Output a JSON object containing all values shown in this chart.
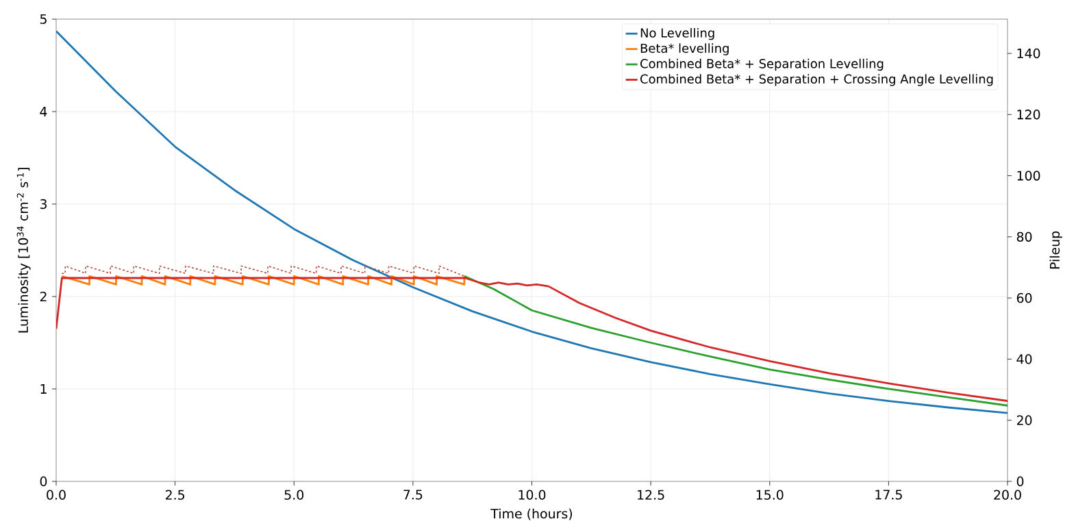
{
  "chart_data": {
    "type": "line",
    "xlabel": "Time (hours)",
    "ylabel": "Luminosity [10$^{34}$ cm$^{-2}$ s$^{-1}$]",
    "y2label": "Pileup",
    "xlim": [
      0,
      20
    ],
    "ylim": [
      0,
      5
    ],
    "y2lim": [
      0,
      151.2
    ],
    "xticks": [
      {
        "value": 0,
        "label": "0.0"
      },
      {
        "value": 2.5,
        "label": "2.5"
      },
      {
        "value": 5,
        "label": "5.0"
      },
      {
        "value": 7.5,
        "label": "7.5"
      },
      {
        "value": 10,
        "label": "10.0"
      },
      {
        "value": 12.5,
        "label": "12.5"
      },
      {
        "value": 15,
        "label": "15.0"
      },
      {
        "value": 17.5,
        "label": "17.5"
      },
      {
        "value": 20,
        "label": "20.0"
      }
    ],
    "yticks": [
      0,
      1,
      2,
      3,
      4,
      5
    ],
    "y2ticks": [
      0,
      20,
      40,
      60,
      80,
      100,
      120,
      140
    ],
    "grid": true,
    "legend": "top right",
    "marker": "none",
    "series": [
      {
        "name": "No Levelling",
        "color": "#1f77b4",
        "x": [
          0,
          1.25,
          2.5,
          3.75,
          5,
          6.25,
          7.5,
          8.75,
          10,
          11.25,
          12.5,
          13.75,
          15,
          16.25,
          17.5,
          18.75,
          20
        ],
        "values": [
          4.87,
          4.22,
          3.62,
          3.15,
          2.73,
          2.39,
          2.1,
          1.84,
          1.62,
          1.44,
          1.29,
          1.16,
          1.05,
          0.95,
          0.87,
          0.8,
          0.74
        ]
      },
      {
        "name": "Beta* levelling",
        "color": "#ff7f0e",
        "x": [
          0.12,
          0.7,
          0.7,
          1.26,
          1.26,
          1.8,
          1.8,
          2.29,
          2.29,
          2.82,
          2.82,
          3.34,
          3.34,
          3.92,
          3.92,
          4.47,
          4.47,
          5.0,
          5.0,
          5.52,
          5.52,
          6.03,
          6.03,
          6.56,
          6.56,
          7.05,
          7.05,
          7.52,
          7.52,
          8.0,
          8.0,
          8.58,
          8.58
        ],
        "values": [
          2.22,
          2.13,
          2.22,
          2.13,
          2.22,
          2.13,
          2.22,
          2.13,
          2.22,
          2.13,
          2.22,
          2.13,
          2.22,
          2.13,
          2.22,
          2.13,
          2.22,
          2.13,
          2.22,
          2.13,
          2.22,
          2.13,
          2.22,
          2.13,
          2.22,
          2.13,
          2.22,
          2.13,
          2.22,
          2.13,
          2.22,
          2.13,
          2.22
        ]
      },
      {
        "name": "Combined Beta* + Separation Levelling",
        "color": "#2ca02c",
        "x": [
          8.58,
          9.2,
          10,
          11.25,
          12.5,
          13.75,
          15,
          16.25,
          17.5,
          18.75,
          20
        ],
        "values": [
          2.22,
          2.08,
          1.85,
          1.66,
          1.5,
          1.35,
          1.21,
          1.1,
          1.0,
          0.91,
          0.82
        ]
      },
      {
        "name": "Combined Beta* + Separation + Crossing Angle Levelling",
        "color": "#d62728",
        "x": [
          0,
          0.12,
          8.6,
          8.9,
          9.1,
          9.3,
          9.5,
          9.7,
          9.9,
          10.1,
          10.35,
          11,
          11.75,
          12.5,
          13.75,
          15,
          16.25,
          17.5,
          18.75,
          20
        ],
        "values": [
          1.65,
          2.2,
          2.2,
          2.15,
          2.13,
          2.15,
          2.13,
          2.14,
          2.12,
          2.13,
          2.11,
          1.93,
          1.77,
          1.63,
          1.45,
          1.3,
          1.17,
          1.06,
          0.96,
          0.87
        ]
      },
      {
        "color": "#b5473a",
        "line_style": "dashed",
        "x": [
          0.12,
          0.19,
          0.19,
          0.62,
          0.62,
          1.14,
          1.14,
          1.63,
          1.63,
          2.17,
          2.17,
          2.72,
          2.72,
          3.31,
          3.31,
          3.89,
          3.89,
          4.45,
          4.45,
          4.94,
          4.94,
          5.47,
          5.47,
          5.99,
          5.99,
          6.49,
          6.49,
          6.99,
          6.99,
          7.52,
          7.52,
          8.05,
          8.05,
          8.58
        ],
        "values": [
          2.25,
          2.25,
          2.33,
          2.25,
          2.33,
          2.25,
          2.33,
          2.25,
          2.33,
          2.25,
          2.33,
          2.25,
          2.33,
          2.25,
          2.33,
          2.25,
          2.33,
          2.25,
          2.33,
          2.25,
          2.33,
          2.25,
          2.33,
          2.25,
          2.33,
          2.25,
          2.33,
          2.25,
          2.33,
          2.25,
          2.33,
          2.25,
          2.33,
          2.22
        ]
      }
    ]
  }
}
